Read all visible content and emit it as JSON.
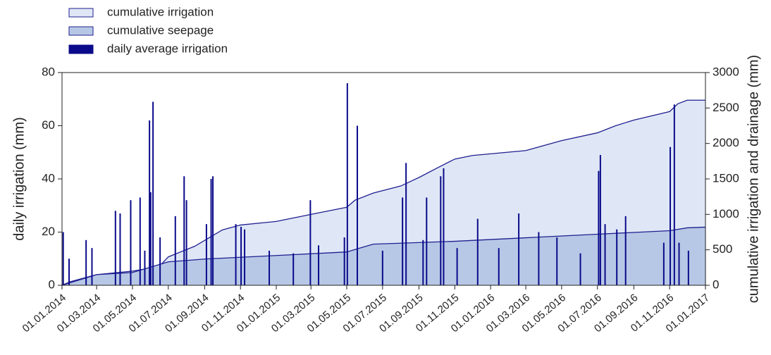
{
  "chart_data": {
    "type": "combo",
    "legend": "top-left",
    "xlim": [
      "01.01.2014",
      "01.01.2017"
    ],
    "xticks": [
      "01.01.2014",
      "01.03.2014",
      "01.05.2014",
      "01.07.2014",
      "01.09.2014",
      "01.11.2014",
      "01.01.2015",
      "01.03.2015",
      "01.05.2015",
      "01.07.2015",
      "01.09.2015",
      "01.11.2015",
      "01.01.2016",
      "01.03.2016",
      "01.05.2016",
      "01.07.2016",
      "01.09.2016",
      "01.11.2016",
      "01.01.2017"
    ],
    "ylabel": "daily irrigation (mm)",
    "ylim": [
      0,
      80
    ],
    "yticks": [
      0,
      20,
      40,
      60,
      80
    ],
    "y2label": "cumulative irrigation and drainage (mm)",
    "y2lim": [
      0,
      3000
    ],
    "y2ticks": [
      0,
      500,
      1000,
      1500,
      2000,
      2500,
      3000
    ],
    "series": [
      {
        "name": "cumulative irrigation",
        "type": "area",
        "axis": "y2",
        "color": "#dfe7f6",
        "line_color": "#1f1f8f",
        "x": [
          "01.01.2014",
          "15.01.2014",
          "01.03.2014",
          "01.05.2014",
          "15.06.2014",
          "01.07.2014",
          "15.08.2014",
          "01.10.2014",
          "01.11.2014",
          "01.01.2015",
          "01.03.2015",
          "01.05.2015",
          "15.05.2015",
          "15.06.2015",
          "01.08.2015",
          "01.09.2015",
          "01.10.2015",
          "01.11.2015",
          "01.12.2015",
          "01.03.2016",
          "01.05.2016",
          "01.07.2016",
          "01.08.2016",
          "01.09.2016",
          "01.11.2016",
          "15.11.2016",
          "01.12.2016",
          "01.01.2017"
        ],
        "values": [
          0,
          50,
          150,
          200,
          260,
          400,
          550,
          780,
          850,
          900,
          1000,
          1100,
          1200,
          1300,
          1400,
          1520,
          1650,
          1780,
          1830,
          1900,
          2040,
          2150,
          2250,
          2330,
          2450,
          2560,
          2610,
          2610
        ]
      },
      {
        "name": "cumulative seepage",
        "type": "area",
        "axis": "y2",
        "color": "#b7c8e6",
        "line_color": "#1f1f8f",
        "x": [
          "01.01.2014",
          "01.03.2014",
          "01.05.2014",
          "01.07.2014",
          "01.09.2014",
          "01.01.2015",
          "01.05.2015",
          "15.06.2015",
          "01.11.2015",
          "01.03.2016",
          "01.07.2016",
          "01.11.2016",
          "01.12.2016",
          "01.01.2017"
        ],
        "values": [
          0,
          150,
          180,
          330,
          370,
          420,
          470,
          580,
          620,
          670,
          720,
          770,
          810,
          820
        ]
      },
      {
        "name": "daily average irrigation",
        "type": "bar",
        "axis": "y",
        "color": "#0a0a8a",
        "x": [
          "03.01.2014",
          "13.01.2014",
          "11.02.2014",
          "21.02.2014",
          "02.04.2014",
          "10.04.2014",
          "28.04.2014",
          "14.05.2014",
          "22.05.2014",
          "30.05.2014",
          "01.06.2014",
          "05.06.2014",
          "17.06.2014",
          "13.07.2014",
          "28.07.2014",
          "01.08.2014",
          "04.09.2014",
          "12.09.2014",
          "15.09.2014",
          "24.10.2014",
          "02.11.2014",
          "08.11.2014",
          "20.12.2014",
          "30.01.2015",
          "28.02.2015",
          "14.03.2015",
          "27.04.2015",
          "02.05.2015",
          "19.05.2015",
          "01.07.2015",
          "04.08.2015",
          "10.08.2015",
          "08.09.2015",
          "14.09.2015",
          "08.10.2015",
          "13.10.2015",
          "05.11.2015",
          "10.12.2015",
          "15.01.2016",
          "18.02.2016",
          "23.03.2016",
          "23.04.2016",
          "02.06.2016",
          "03.07.2016",
          "06.07.2016",
          "14.07.2016",
          "03.08.2016",
          "18.08.2016",
          "22.10.2016",
          "02.11.2016",
          "09.11.2016",
          "17.11.2016",
          "03.12.2016"
        ],
        "values": [
          20,
          10,
          17,
          14,
          28,
          27,
          32,
          33,
          13,
          62,
          35,
          69,
          18,
          26,
          41,
          32,
          23,
          40,
          41,
          23,
          22,
          21,
          13,
          12,
          32,
          15,
          18,
          76,
          60,
          13,
          33,
          46,
          17,
          33,
          41,
          44,
          14,
          25,
          14,
          27,
          20,
          18,
          12,
          43,
          49,
          23,
          21,
          26,
          16,
          52,
          68,
          16,
          13
        ]
      }
    ]
  }
}
